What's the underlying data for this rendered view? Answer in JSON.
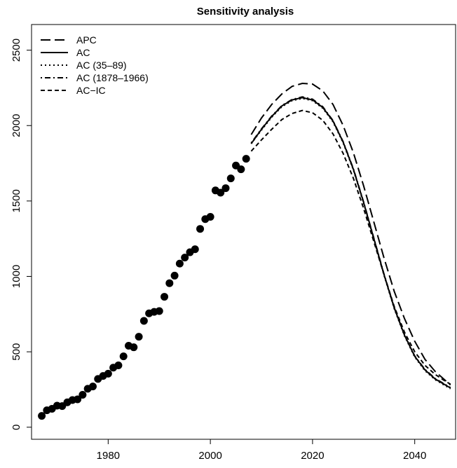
{
  "chart_data": {
    "type": "line",
    "title": "Sensitivity analysis",
    "xlabel": "",
    "ylabel": "",
    "xlim": [
      1965,
      2048
    ],
    "ylim": [
      -80,
      2670
    ],
    "x_ticks": [
      1980,
      2000,
      2020,
      2040
    ],
    "y_ticks": [
      0,
      500,
      1000,
      1500,
      2000,
      2500
    ],
    "grid": false,
    "legend_position": "top-left",
    "observed": {
      "marker": "filled-circle",
      "x": [
        1967,
        1968,
        1969,
        1970,
        1971,
        1972,
        1973,
        1974,
        1975,
        1976,
        1977,
        1978,
        1979,
        1980,
        1981,
        1982,
        1983,
        1984,
        1985,
        1986,
        1987,
        1988,
        1989,
        1990,
        1991,
        1992,
        1993,
        1994,
        1995,
        1996,
        1997,
        1998,
        1999,
        2000,
        2001,
        2002,
        2003,
        2004,
        2005,
        2006,
        2007
      ],
      "y": [
        75,
        112,
        122,
        143,
        140,
        165,
        180,
        185,
        215,
        255,
        270,
        320,
        340,
        355,
        395,
        410,
        470,
        540,
        530,
        600,
        705,
        755,
        765,
        770,
        865,
        955,
        1005,
        1085,
        1125,
        1160,
        1180,
        1315,
        1380,
        1395,
        1570,
        1555,
        1585,
        1650,
        1735,
        1710,
        1780
      ]
    },
    "series": [
      {
        "name": "APC",
        "style": "long-dash",
        "x": [
          2008,
          2010,
          2012,
          2014,
          2016,
          2018,
          2020,
          2022,
          2024,
          2026,
          2028,
          2030,
          2032,
          2034,
          2036,
          2038,
          2040,
          2042,
          2044,
          2046,
          2047
        ],
        "y": [
          1940,
          2050,
          2140,
          2210,
          2260,
          2280,
          2275,
          2230,
          2140,
          2000,
          1820,
          1600,
          1360,
          1120,
          900,
          720,
          570,
          450,
          370,
          310,
          280
        ]
      },
      {
        "name": "AC",
        "style": "solid",
        "x": [
          2008,
          2010,
          2012,
          2014,
          2016,
          2018,
          2020,
          2022,
          2024,
          2026,
          2028,
          2030,
          2032,
          2034,
          2036,
          2038,
          2040,
          2042,
          2044,
          2046,
          2047
        ],
        "y": [
          1880,
          1975,
          2060,
          2130,
          2170,
          2185,
          2170,
          2120,
          2030,
          1890,
          1710,
          1490,
          1250,
          1010,
          790,
          610,
          470,
          380,
          320,
          280,
          260
        ]
      },
      {
        "name": "AC (35–89)",
        "style": "dotted",
        "x": [
          2008,
          2010,
          2012,
          2014,
          2016,
          2018,
          2020,
          2022,
          2024,
          2026,
          2028,
          2030,
          2032,
          2034,
          2036,
          2038,
          2040,
          2042,
          2044,
          2046,
          2047
        ],
        "y": [
          1880,
          1970,
          2055,
          2125,
          2165,
          2180,
          2165,
          2115,
          2025,
          1885,
          1705,
          1485,
          1245,
          1005,
          785,
          605,
          465,
          375,
          315,
          275,
          255
        ]
      },
      {
        "name": "AC (1878–1966)",
        "style": "dot-dash",
        "x": [
          2008,
          2010,
          2012,
          2014,
          2016,
          2018,
          2020,
          2022,
          2024,
          2026,
          2028,
          2030,
          2032,
          2034,
          2036,
          2038,
          2040,
          2042,
          2044,
          2046,
          2047
        ],
        "y": [
          1885,
          1978,
          2063,
          2133,
          2173,
          2190,
          2175,
          2125,
          2033,
          1893,
          1713,
          1493,
          1253,
          1013,
          793,
          613,
          473,
          383,
          323,
          283,
          263
        ]
      },
      {
        "name": "AC−IC",
        "style": "short-dash",
        "x": [
          2008,
          2010,
          2012,
          2014,
          2016,
          2018,
          2020,
          2022,
          2024,
          2026,
          2028,
          2030,
          2032,
          2034,
          2036,
          2038,
          2040,
          2042,
          2044,
          2046,
          2047
        ],
        "y": [
          1830,
          1905,
          1975,
          2040,
          2080,
          2100,
          2085,
          2035,
          1945,
          1815,
          1650,
          1450,
          1230,
          1010,
          800,
          630,
          500,
          410,
          350,
          305,
          285
        ]
      }
    ]
  }
}
